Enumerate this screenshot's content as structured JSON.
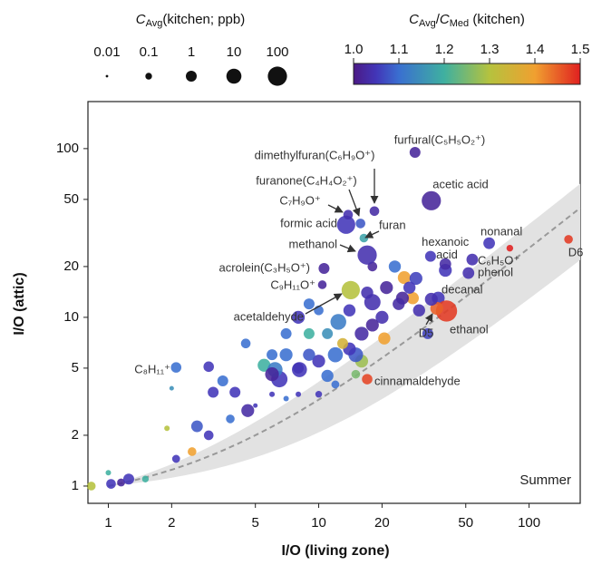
{
  "chart_data": {
    "type": "scatter",
    "x_label": "I/O (living zone)",
    "y_label": "I/O (attic)",
    "corner_text": "Summer",
    "log_x": true,
    "log_y": true,
    "xlim": [
      0.8,
      175
    ],
    "ylim": [
      0.79,
      190
    ],
    "xticks": [
      1,
      2,
      5,
      10,
      20,
      50,
      100
    ],
    "yticks": [
      1,
      2,
      5,
      10,
      20,
      50,
      100
    ],
    "size_title": [
      "C",
      "Avg",
      "(kitchen; ppb)"
    ],
    "size_legend": [
      0.01,
      0.1,
      1,
      10,
      100
    ],
    "color_title": [
      "C",
      "Avg",
      "/",
      "C",
      "Med",
      " (kitchen)"
    ],
    "color_lim": [
      1,
      1.5
    ],
    "color_ticks": [
      {
        "value": 1,
        "label": "1.0"
      },
      {
        "value": 1.1,
        "label": "1.1"
      },
      {
        "value": 1.2,
        "label": "1.2"
      },
      {
        "value": 1.3,
        "label": "1.3"
      },
      {
        "value": 1.4,
        "label": "1.4"
      },
      {
        "value": 1.5,
        "label": "1.5"
      }
    ],
    "x": [
      28.7,
      18.4,
      15.8,
      13.8,
      34.3,
      13.5,
      16.4,
      17,
      10.6,
      10.4,
      14.2,
      40,
      64.6,
      53.7,
      51.5,
      154,
      34.3,
      36.4,
      40.5,
      17,
      2.1,
      81,
      0.83,
      1.03,
      1.25,
      1.5,
      1.15,
      1.0,
      1.9,
      2.1,
      2.5,
      3.0,
      2.64,
      4.6,
      3.8,
      2.0,
      3.15,
      3.0,
      3.5,
      4.0,
      6,
      6.2,
      5.5,
      6.5,
      7,
      8.1,
      8,
      9,
      10,
      11,
      12,
      13,
      14,
      15,
      12.4,
      16,
      18,
      20,
      20.5,
      18,
      24,
      25,
      27,
      29,
      28,
      25.5,
      8,
      9,
      6,
      5,
      6,
      7,
      8,
      10,
      12,
      15,
      16,
      11,
      7,
      9,
      10,
      14,
      17,
      21,
      23,
      37,
      30,
      40,
      18,
      34,
      33,
      4.5
    ],
    "y": [
      95,
      42.6,
      36,
      40.6,
      49.1,
      35.4,
      29.5,
      23.4,
      19.5,
      15.6,
      14.5,
      20.7,
      27.5,
      22,
      18.3,
      29,
      12.8,
      11.3,
      10.9,
      4.3,
      5.05,
      25.7,
      1.0,
      1.03,
      1.1,
      1.1,
      1.05,
      1.2,
      2.2,
      1.45,
      1.6,
      2.0,
      2.26,
      2.8,
      2.5,
      3.8,
      3.6,
      5.1,
      4.2,
      3.6,
      4.6,
      4.9,
      5.2,
      4.3,
      6,
      4.9,
      5,
      6,
      5.5,
      4.5,
      6,
      7,
      6.5,
      6,
      9.4,
      8,
      9,
      10,
      7.5,
      12.3,
      12,
      13,
      15,
      17,
      13,
      17.2,
      10,
      8,
      6,
      3,
      3.5,
      3.3,
      3.5,
      3.5,
      4,
      4.6,
      5.5,
      8,
      8,
      12,
      11,
      11,
      14,
      15,
      20,
      13,
      11,
      19,
      20,
      23,
      8,
      7
    ],
    "size": [
      1,
      0.5,
      0.5,
      0.5,
      100,
      60,
      0.3,
      100,
      1,
      0.3,
      60,
      1.5,
      1.5,
      1.5,
      1.5,
      0.3,
      3,
      3,
      300,
      0.8,
      0.8,
      0.1,
      0.3,
      0.5,
      1,
      0.1,
      0.2,
      0.05,
      0.05,
      0.2,
      0.3,
      0.5,
      1.5,
      3,
      0.3,
      0.03,
      1,
      0.8,
      1,
      1,
      5,
      10,
      3,
      20,
      3,
      10,
      1,
      2,
      3,
      2,
      10,
      1,
      3,
      8,
      15,
      5,
      3,
      3,
      2,
      20,
      2,
      3,
      2,
      3,
      2,
      3,
      3,
      1,
      1,
      0.03,
      0.05,
      0.05,
      0.05,
      0.1,
      0.2,
      0.3,
      3,
      1,
      1,
      1,
      0.5,
      2,
      2,
      3,
      2,
      3,
      2,
      3,
      0.5,
      1,
      1,
      0.5
    ],
    "ratio": [
      1.02,
      1.03,
      1.08,
      1.04,
      1.02,
      1.05,
      1.18,
      1.04,
      1.02,
      1.02,
      1.3,
      1.03,
      1.05,
      1.04,
      1.04,
      1.48,
      1.04,
      1.45,
      1.48,
      1.47,
      1.1,
      1.5,
      1.3,
      1.05,
      1.05,
      1.2,
      1.02,
      1.2,
      1.3,
      1.05,
      1.4,
      1.05,
      1.08,
      1.03,
      1.1,
      1.15,
      1.05,
      1.05,
      1.1,
      1.05,
      1.02,
      1.12,
      1.2,
      1.05,
      1.1,
      1.05,
      1.02,
      1.08,
      1.05,
      1.1,
      1.1,
      1.35,
      1.05,
      1.08,
      1.12,
      1.03,
      1.02,
      1.04,
      1.4,
      1.04,
      1.03,
      1.02,
      1.05,
      1.06,
      1.4,
      1.4,
      1.05,
      1.2,
      1.1,
      1.05,
      1.05,
      1.1,
      1.05,
      1.05,
      1.1,
      1.25,
      1.28,
      1.15,
      1.1,
      1.1,
      1.1,
      1.05,
      1.04,
      1.02,
      1.1,
      1.05,
      1.04,
      1.05,
      1.02,
      1.05,
      1.06,
      1.1
    ],
    "annotations": [
      {
        "text": "furfural(C₅H₅O₂⁺)",
        "point": 0
      },
      {
        "text": "dimethylfuran(C₆H₉O⁺)",
        "point": 1
      },
      {
        "text": "furanone(C₄H₄O₂⁺)",
        "point": 2
      },
      {
        "text": "C₇H₉O⁺",
        "point": 3
      },
      {
        "text": "acetic acid",
        "point": 4
      },
      {
        "text": "formic acid",
        "point": 5
      },
      {
        "text": "furan",
        "point": 6
      },
      {
        "text": "methanol",
        "point": 7
      },
      {
        "text": "acrolein(C₃H₅O⁺)",
        "point": 8
      },
      {
        "text": "C₉H₁₁O⁺",
        "point": 9
      },
      {
        "text": "acetaldehyde",
        "point": 10
      },
      {
        "text": "hexanoic acid",
        "point": 11
      },
      {
        "text": "nonanal",
        "point": 12
      },
      {
        "text": "C₆H₅O⁺",
        "point": 13
      },
      {
        "text": "phenol",
        "point": 14
      },
      {
        "text": "D6",
        "point": 15
      },
      {
        "text": "decanal",
        "point": 16
      },
      {
        "text": "D5",
        "point": 17
      },
      {
        "text": "ethanol",
        "point": 18
      },
      {
        "text": "cinnamaldehyde",
        "point": 19
      },
      {
        "text": "C₈H₁₁⁺",
        "point": 20
      }
    ]
  }
}
